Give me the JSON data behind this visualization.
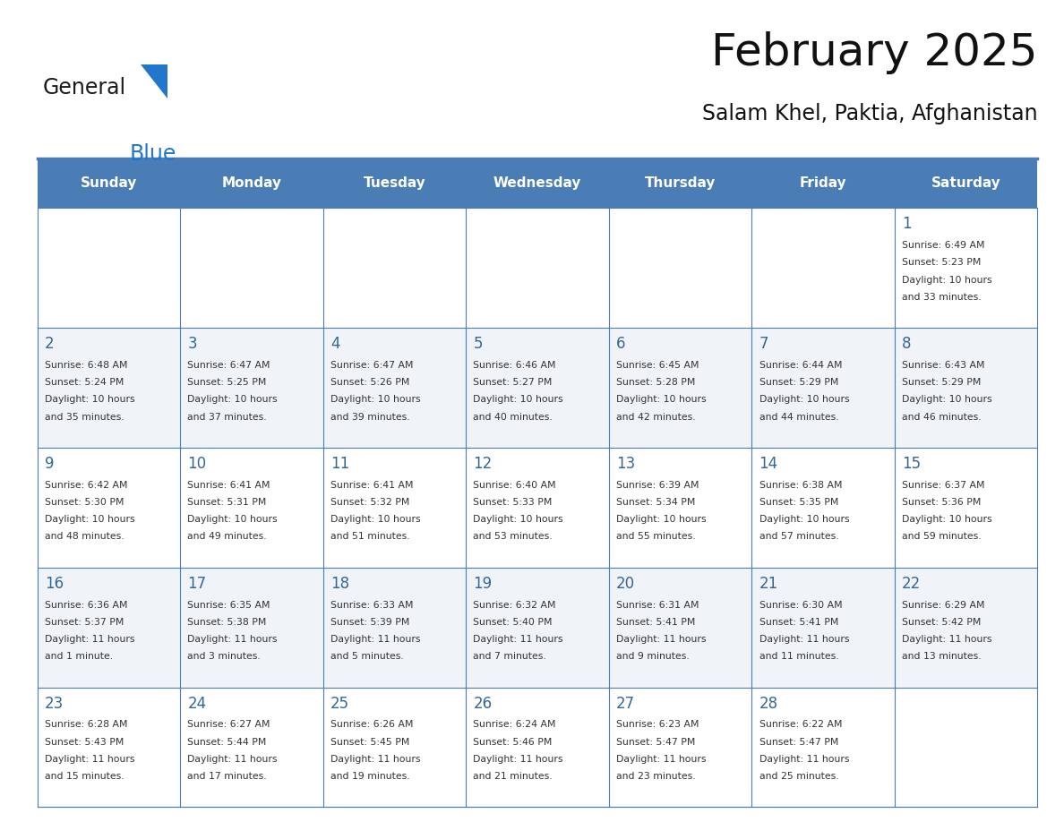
{
  "title": "February 2025",
  "subtitle": "Salam Khel, Paktia, Afghanistan",
  "header_bg_color": "#4A7DB5",
  "header_text_color": "#FFFFFF",
  "day_names": [
    "Sunday",
    "Monday",
    "Tuesday",
    "Wednesday",
    "Thursday",
    "Friday",
    "Saturday"
  ],
  "bg_color": "#FFFFFF",
  "cell_bg_even": "#F0F4F8",
  "cell_bg_odd": "#FFFFFF",
  "day_number_color": "#336699",
  "info_text_color": "#333333",
  "border_color": "#4A7DB5",
  "separator_color": "#4A7DB5",
  "calendar_data": [
    [
      null,
      null,
      null,
      null,
      null,
      null,
      {
        "day": 1,
        "sunrise": "6:49 AM",
        "sunset": "5:23 PM",
        "daylight_hours": 10,
        "daylight_minutes": 33
      }
    ],
    [
      {
        "day": 2,
        "sunrise": "6:48 AM",
        "sunset": "5:24 PM",
        "daylight_hours": 10,
        "daylight_minutes": 35
      },
      {
        "day": 3,
        "sunrise": "6:47 AM",
        "sunset": "5:25 PM",
        "daylight_hours": 10,
        "daylight_minutes": 37
      },
      {
        "day": 4,
        "sunrise": "6:47 AM",
        "sunset": "5:26 PM",
        "daylight_hours": 10,
        "daylight_minutes": 39
      },
      {
        "day": 5,
        "sunrise": "6:46 AM",
        "sunset": "5:27 PM",
        "daylight_hours": 10,
        "daylight_minutes": 40
      },
      {
        "day": 6,
        "sunrise": "6:45 AM",
        "sunset": "5:28 PM",
        "daylight_hours": 10,
        "daylight_minutes": 42
      },
      {
        "day": 7,
        "sunrise": "6:44 AM",
        "sunset": "5:29 PM",
        "daylight_hours": 10,
        "daylight_minutes": 44
      },
      {
        "day": 8,
        "sunrise": "6:43 AM",
        "sunset": "5:29 PM",
        "daylight_hours": 10,
        "daylight_minutes": 46
      }
    ],
    [
      {
        "day": 9,
        "sunrise": "6:42 AM",
        "sunset": "5:30 PM",
        "daylight_hours": 10,
        "daylight_minutes": 48
      },
      {
        "day": 10,
        "sunrise": "6:41 AM",
        "sunset": "5:31 PM",
        "daylight_hours": 10,
        "daylight_minutes": 49
      },
      {
        "day": 11,
        "sunrise": "6:41 AM",
        "sunset": "5:32 PM",
        "daylight_hours": 10,
        "daylight_minutes": 51
      },
      {
        "day": 12,
        "sunrise": "6:40 AM",
        "sunset": "5:33 PM",
        "daylight_hours": 10,
        "daylight_minutes": 53
      },
      {
        "day": 13,
        "sunrise": "6:39 AM",
        "sunset": "5:34 PM",
        "daylight_hours": 10,
        "daylight_minutes": 55
      },
      {
        "day": 14,
        "sunrise": "6:38 AM",
        "sunset": "5:35 PM",
        "daylight_hours": 10,
        "daylight_minutes": 57
      },
      {
        "day": 15,
        "sunrise": "6:37 AM",
        "sunset": "5:36 PM",
        "daylight_hours": 10,
        "daylight_minutes": 59
      }
    ],
    [
      {
        "day": 16,
        "sunrise": "6:36 AM",
        "sunset": "5:37 PM",
        "daylight_hours": 11,
        "daylight_minutes": 1
      },
      {
        "day": 17,
        "sunrise": "6:35 AM",
        "sunset": "5:38 PM",
        "daylight_hours": 11,
        "daylight_minutes": 3
      },
      {
        "day": 18,
        "sunrise": "6:33 AM",
        "sunset": "5:39 PM",
        "daylight_hours": 11,
        "daylight_minutes": 5
      },
      {
        "day": 19,
        "sunrise": "6:32 AM",
        "sunset": "5:40 PM",
        "daylight_hours": 11,
        "daylight_minutes": 7
      },
      {
        "day": 20,
        "sunrise": "6:31 AM",
        "sunset": "5:41 PM",
        "daylight_hours": 11,
        "daylight_minutes": 9
      },
      {
        "day": 21,
        "sunrise": "6:30 AM",
        "sunset": "5:41 PM",
        "daylight_hours": 11,
        "daylight_minutes": 11
      },
      {
        "day": 22,
        "sunrise": "6:29 AM",
        "sunset": "5:42 PM",
        "daylight_hours": 11,
        "daylight_minutes": 13
      }
    ],
    [
      {
        "day": 23,
        "sunrise": "6:28 AM",
        "sunset": "5:43 PM",
        "daylight_hours": 11,
        "daylight_minutes": 15
      },
      {
        "day": 24,
        "sunrise": "6:27 AM",
        "sunset": "5:44 PM",
        "daylight_hours": 11,
        "daylight_minutes": 17
      },
      {
        "day": 25,
        "sunrise": "6:26 AM",
        "sunset": "5:45 PM",
        "daylight_hours": 11,
        "daylight_minutes": 19
      },
      {
        "day": 26,
        "sunrise": "6:24 AM",
        "sunset": "5:46 PM",
        "daylight_hours": 11,
        "daylight_minutes": 21
      },
      {
        "day": 27,
        "sunrise": "6:23 AM",
        "sunset": "5:47 PM",
        "daylight_hours": 11,
        "daylight_minutes": 23
      },
      {
        "day": 28,
        "sunrise": "6:22 AM",
        "sunset": "5:47 PM",
        "daylight_hours": 11,
        "daylight_minutes": 25
      },
      null
    ]
  ],
  "logo_text_general": "General",
  "logo_text_blue": "Blue",
  "logo_color_general": "#1a1a1a",
  "logo_color_blue": "#2277CC",
  "logo_triangle_color": "#2277CC",
  "fig_width": 11.88,
  "fig_height": 9.18,
  "dpi": 100
}
